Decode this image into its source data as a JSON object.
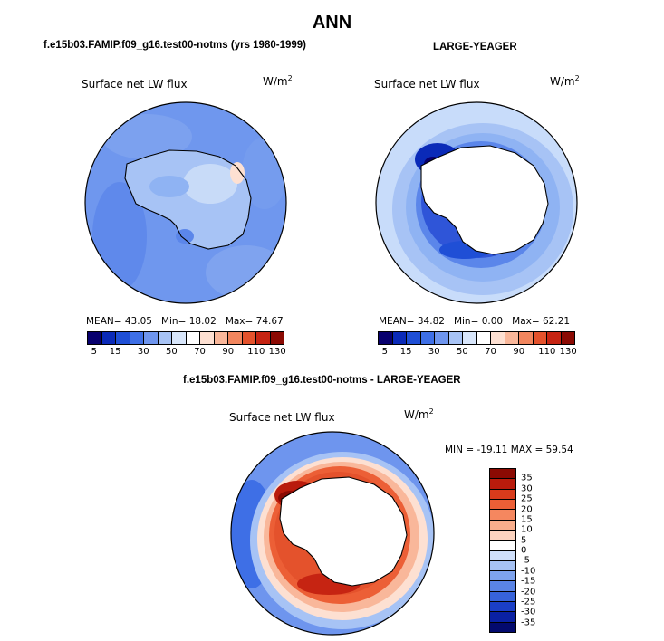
{
  "title": "ANN",
  "panels": {
    "model": {
      "title": "f.e15b03.FAMIP.f09_g16.test00-notms (yrs 1980-1999)",
      "label": "Surface net LW flux",
      "units": "W/m",
      "units_exp": "2",
      "stats": {
        "mean_label": "MEAN=",
        "mean": "43.05",
        "min_label": "Min=",
        "min": "18.02",
        "max_label": "Max=",
        "max": "74.67"
      }
    },
    "obs": {
      "title": "LARGE-YEAGER",
      "label": "Surface net LW flux",
      "units": "W/m",
      "units_exp": "2",
      "stats": {
        "mean_label": "MEAN=",
        "mean": "34.82",
        "min_label": "Min=",
        "min": "0.00",
        "max_label": "Max=",
        "max": "62.21"
      }
    },
    "diff": {
      "title": "f.e15b03.FAMIP.f09_g16.test00-notms - LARGE-YEAGER",
      "label": "Surface net LW flux",
      "units": "W/m",
      "units_exp": "2",
      "stats": {
        "min_label": "MIN =",
        "min": "-19.11",
        "max_label": "MAX =",
        "max": "59.54"
      }
    }
  },
  "colorbar_abs": {
    "colors": [
      "#08006e",
      "#0a2ab8",
      "#1f4fd6",
      "#3e6fe6",
      "#6e95ee",
      "#a7c3f5",
      "#d8e6fb",
      "#ffffff",
      "#fde0d2",
      "#f9b79a",
      "#f2865e",
      "#e4522c",
      "#c62412",
      "#8b0a03"
    ],
    "tick_labels": [
      "5",
      "15",
      "30",
      "50",
      "70",
      "90",
      "110",
      "130"
    ]
  },
  "colorbar_diff": {
    "colors": [
      "#8b0a03",
      "#b91b0c",
      "#d83b1c",
      "#ec5f36",
      "#f5875f",
      "#f9ae8c",
      "#fcd3bf",
      "#ffffff",
      "#d0e0fb",
      "#a6c2f4",
      "#7ea3ee",
      "#5a84e6",
      "#3763da",
      "#1b3fc7",
      "#0a21a3",
      "#030a6e"
    ],
    "tick_labels": [
      "35",
      "30",
      "25",
      "20",
      "15",
      "10",
      "5",
      "0",
      "-5",
      "-10",
      "-15",
      "-20",
      "-25",
      "-30",
      "-35"
    ]
  },
  "colors": {
    "ocean_model": "#6f97ee",
    "ocean_obs_low": "#c8dcfa",
    "ocean_obs_mid": "#8fb3f3",
    "coast_obs": "#1c3fcc",
    "diff_warm": "#e4522c",
    "diff_hot": "#b91b0c",
    "diff_cool": "#6e95ee",
    "land_outline": "#000000"
  }
}
